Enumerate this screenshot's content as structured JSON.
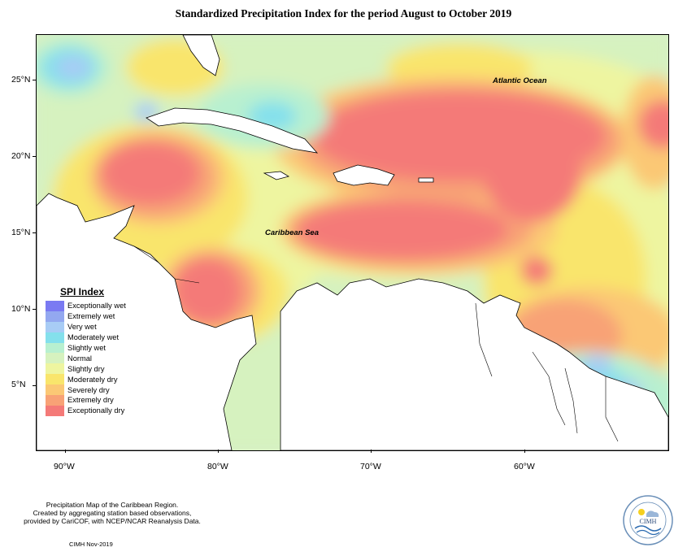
{
  "title": "Standardized Precipitation Index for the period August to October 2019",
  "map": {
    "latitude_labels": [
      "25°N",
      "20°N",
      "15°N",
      "10°N",
      "5°N"
    ],
    "longitude_labels": [
      "90°W",
      "80°W",
      "70°W",
      "60°W"
    ],
    "ocean_labels": {
      "atlantic": "Atlantic Ocean",
      "caribbean": "Caribbean Sea"
    }
  },
  "legend": {
    "title": "SPI Index",
    "items": [
      {
        "label": "Exceptionally wet",
        "color": "#7a7af2"
      },
      {
        "label": "Extremely wet",
        "color": "#93a8f0"
      },
      {
        "label": "Very wet",
        "color": "#a8ccf5"
      },
      {
        "label": "Moderately wet",
        "color": "#84e0ec"
      },
      {
        "label": "Slightly wet",
        "color": "#b8f0d0"
      },
      {
        "label": "Normal",
        "color": "#d6f2bf"
      },
      {
        "label": "Slightly dry",
        "color": "#eef5a0"
      },
      {
        "label": "Moderately dry",
        "color": "#f9e56c"
      },
      {
        "label": "Severely dry",
        "color": "#fbc875"
      },
      {
        "label": "Extremely dry",
        "color": "#f8a276"
      },
      {
        "label": "Exceptionally dry",
        "color": "#f47a78"
      }
    ]
  },
  "footer": {
    "line1": "Precipitation Map of the Caribbean Region.",
    "line2": "Created by aggregating station based observations,",
    "line3": "provided by CariCOF, with NCEP/NCAR Reanalysis Data.",
    "credit": "CIMH Nov-2019",
    "logo_text": "CIMH"
  }
}
